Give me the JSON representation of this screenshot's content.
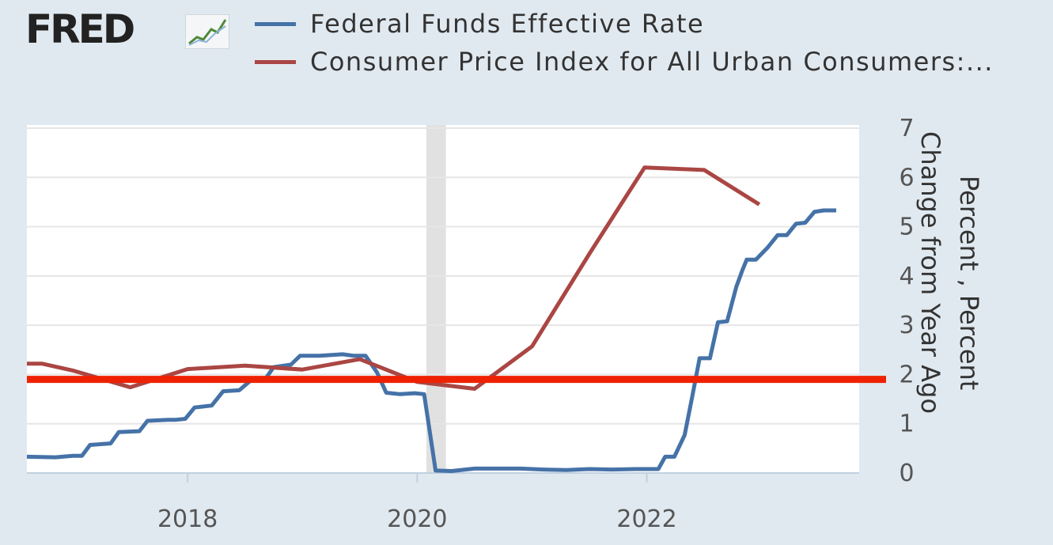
{
  "header": {
    "logo_text": "FRED"
  },
  "legend": [
    {
      "label": "Federal Funds Effective Rate",
      "color": "#4572a7"
    },
    {
      "label": "Consumer Price Index for All Urban Consumers:...",
      "color": "#aa4643"
    }
  ],
  "chart_data": {
    "type": "line",
    "title": "",
    "xlabel": "",
    "ylabel_lines": [
      "Percent , Percent",
      "Change from Year Ago"
    ],
    "ylim": [
      0,
      7
    ],
    "xlim": [
      2016.6,
      2023.85
    ],
    "y_ticks": [
      "0",
      "1",
      "2",
      "3",
      "4",
      "5",
      "6",
      "7"
    ],
    "x_ticks": [
      {
        "value": 2018,
        "label": "2018"
      },
      {
        "value": 2020,
        "label": "2020"
      },
      {
        "value": 2022,
        "label": "2022"
      }
    ],
    "recession": [
      2020.08,
      2020.25
    ],
    "reference_line": {
      "value": 1.9,
      "color": "#ee2200"
    },
    "series": [
      {
        "name": "Federal Funds Effective Rate",
        "color": "#4572a7",
        "points": [
          [
            2016.6,
            0.33
          ],
          [
            2016.85,
            0.32
          ],
          [
            2017.0,
            0.35
          ],
          [
            2017.08,
            0.35
          ],
          [
            2017.15,
            0.57
          ],
          [
            2017.33,
            0.6
          ],
          [
            2017.4,
            0.83
          ],
          [
            2017.58,
            0.85
          ],
          [
            2017.65,
            1.06
          ],
          [
            2017.83,
            1.08
          ],
          [
            2017.9,
            1.08
          ],
          [
            2017.98,
            1.1
          ],
          [
            2018.06,
            1.33
          ],
          [
            2018.21,
            1.37
          ],
          [
            2018.31,
            1.66
          ],
          [
            2018.45,
            1.68
          ],
          [
            2018.56,
            1.9
          ],
          [
            2018.68,
            1.92
          ],
          [
            2018.75,
            2.15
          ],
          [
            2018.9,
            2.2
          ],
          [
            2018.98,
            2.38
          ],
          [
            2019.15,
            2.38
          ],
          [
            2019.35,
            2.41
          ],
          [
            2019.45,
            2.38
          ],
          [
            2019.55,
            2.38
          ],
          [
            2019.65,
            2.04
          ],
          [
            2019.73,
            1.63
          ],
          [
            2019.85,
            1.6
          ],
          [
            2019.98,
            1.62
          ],
          [
            2020.06,
            1.6
          ],
          [
            2020.16,
            0.05
          ],
          [
            2020.3,
            0.04
          ],
          [
            2020.5,
            0.09
          ],
          [
            2020.7,
            0.09
          ],
          [
            2020.9,
            0.09
          ],
          [
            2021.1,
            0.07
          ],
          [
            2021.3,
            0.06
          ],
          [
            2021.5,
            0.08
          ],
          [
            2021.7,
            0.07
          ],
          [
            2021.9,
            0.08
          ],
          [
            2022.1,
            0.08
          ],
          [
            2022.16,
            0.33
          ],
          [
            2022.24,
            0.33
          ],
          [
            2022.33,
            0.77
          ],
          [
            2022.4,
            1.6
          ],
          [
            2022.46,
            2.33
          ],
          [
            2022.55,
            2.33
          ],
          [
            2022.62,
            3.06
          ],
          [
            2022.7,
            3.08
          ],
          [
            2022.78,
            3.78
          ],
          [
            2022.83,
            4.1
          ],
          [
            2022.87,
            4.33
          ],
          [
            2022.95,
            4.33
          ],
          [
            2023.05,
            4.57
          ],
          [
            2023.14,
            4.83
          ],
          [
            2023.22,
            4.83
          ],
          [
            2023.3,
            5.06
          ],
          [
            2023.38,
            5.08
          ],
          [
            2023.46,
            5.3
          ],
          [
            2023.54,
            5.33
          ],
          [
            2023.65,
            5.33
          ]
        ]
      },
      {
        "name": "Consumer Price Index for All Urban Consumers:...",
        "color": "#aa4643",
        "points": [
          [
            2016.6,
            2.22
          ],
          [
            2016.73,
            2.22
          ],
          [
            2017.0,
            2.08
          ],
          [
            2017.5,
            1.74
          ],
          [
            2018.0,
            2.11
          ],
          [
            2018.5,
            2.18
          ],
          [
            2019.0,
            2.1
          ],
          [
            2019.5,
            2.31
          ],
          [
            2020.0,
            1.85
          ],
          [
            2020.5,
            1.71
          ],
          [
            2021.0,
            2.57
          ],
          [
            2021.5,
            4.45
          ],
          [
            2021.98,
            6.2
          ],
          [
            2022.5,
            6.15
          ],
          [
            2022.98,
            5.45
          ]
        ]
      }
    ]
  }
}
